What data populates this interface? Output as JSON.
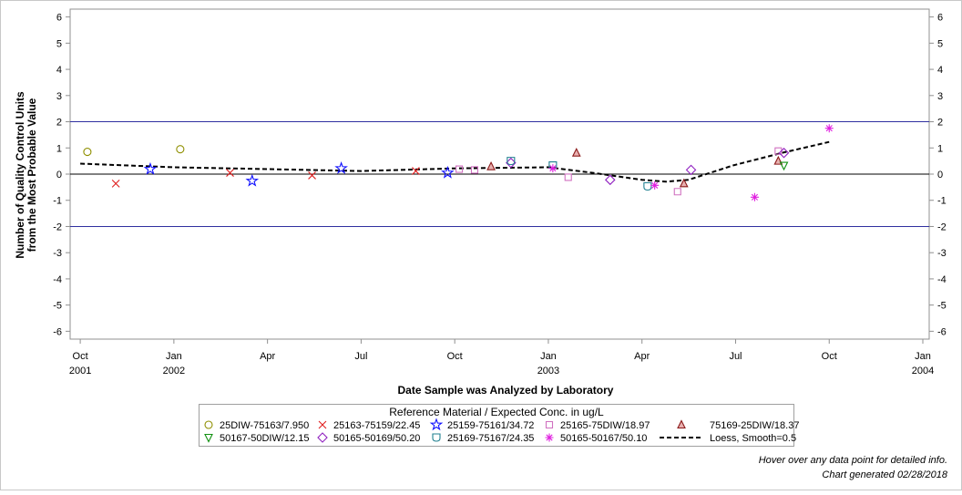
{
  "chart_data": {
    "type": "scatter",
    "x_title": "Date Sample was Analyzed by Laboratory",
    "y_title": [
      "Number of Quality Control Units",
      "from the Most Probable Value"
    ],
    "legend_title": "Reference Material / Expected Conc. in ug/L",
    "notes": [
      "Hover over any data point for detailed info.",
      "Chart generated 02/28/2018"
    ],
    "xlim": [
      2001.723,
      2004.017
    ],
    "ylim": [
      -6.3,
      6.3
    ],
    "xticks": [
      {
        "value": 2001.75,
        "label": "Oct",
        "sublabel": "2001"
      },
      {
        "value": 2002.0,
        "label": "Jan",
        "sublabel": "2002"
      },
      {
        "value": 2002.25,
        "label": "Apr"
      },
      {
        "value": 2002.5,
        "label": "Jul"
      },
      {
        "value": 2002.75,
        "label": "Oct"
      },
      {
        "value": 2003.0,
        "label": "Jan",
        "sublabel": "2003"
      },
      {
        "value": 2003.25,
        "label": "Apr"
      },
      {
        "value": 2003.5,
        "label": "Jul"
      },
      {
        "value": 2003.75,
        "label": "Oct"
      },
      {
        "value": 2004.0,
        "label": "Jan",
        "sublabel": "2004"
      }
    ],
    "yticks": [
      6,
      5,
      4,
      3,
      2,
      1,
      0,
      -1,
      -2,
      -3,
      -4,
      -5,
      -6
    ],
    "reference_lines": [
      {
        "value": 2,
        "color": "#3030a0"
      },
      {
        "value": 0,
        "color": "#000000"
      },
      {
        "value": -2,
        "color": "#3030a0"
      }
    ],
    "series": [
      {
        "name": "25DIW-75163/7.950",
        "marker": "circle",
        "color": "#8f8f00",
        "x": [
          2001.769,
          2002.017
        ],
        "values": [
          0.85,
          0.95
        ]
      },
      {
        "name": "25163-75159/22.45",
        "marker": "x",
        "color": "#e02020",
        "x": [
          2001.845,
          2002.15,
          2002.369,
          2002.646
        ],
        "values": [
          -0.36,
          0.05,
          -0.05,
          0.12
        ]
      },
      {
        "name": "25159-75161/34.72",
        "marker": "star",
        "color": "#1010ff",
        "x": [
          2001.937,
          2002.209,
          2002.447,
          2002.731
        ],
        "values": [
          0.19,
          -0.26,
          0.22,
          0.05
        ]
      },
      {
        "name": "25165-75DIW/18.97",
        "marker": "square",
        "color": "#d070c0",
        "x": [
          2002.762,
          2002.803,
          2003.053,
          2003.345,
          2003.614
        ],
        "values": [
          0.19,
          0.16,
          -0.12,
          -0.67,
          0.88
        ]
      },
      {
        "name": "75169-25DIW/18.37",
        "marker": "triangle",
        "color": "#8b1a1a",
        "x": [
          2002.847,
          2003.075,
          2003.362,
          2003.614
        ],
        "values": [
          0.29,
          0.81,
          -0.36,
          0.5
        ]
      },
      {
        "name": "50167-50DIW/12.15",
        "marker": "down",
        "color": "#109010",
        "x": [
          2003.629
        ],
        "values": [
          0.33
        ]
      },
      {
        "name": "50165-50169/50.20",
        "marker": "diamond",
        "color": "#9020c0",
        "x": [
          2002.9,
          2003.165,
          2003.381,
          2003.629
        ],
        "values": [
          0.43,
          -0.22,
          0.16,
          0.81
        ]
      },
      {
        "name": "25169-75167/24.35",
        "marker": "shield",
        "color": "#208090",
        "x": [
          2002.9,
          2003.012,
          2003.265
        ],
        "values": [
          0.5,
          0.33,
          -0.47
        ]
      },
      {
        "name": "50165-50167/50.10",
        "marker": "asterisk",
        "color": "#e020e0",
        "x": [
          2003.012,
          2003.284,
          2003.551,
          2003.75
        ],
        "values": [
          0.22,
          -0.43,
          -0.88,
          1.75
        ]
      }
    ],
    "fit": {
      "name": "Loess, Smooth=0.5",
      "color": "#000000",
      "x": [
        2001.75,
        2002.0,
        2002.25,
        2002.5,
        2002.75,
        2003.0,
        2003.119,
        2003.25,
        2003.313,
        2003.374,
        2003.493,
        2003.624,
        2003.75
      ],
      "values": [
        0.4,
        0.26,
        0.19,
        0.12,
        0.22,
        0.26,
        0.05,
        -0.22,
        -0.29,
        -0.22,
        0.33,
        0.81,
        1.23
      ]
    }
  }
}
